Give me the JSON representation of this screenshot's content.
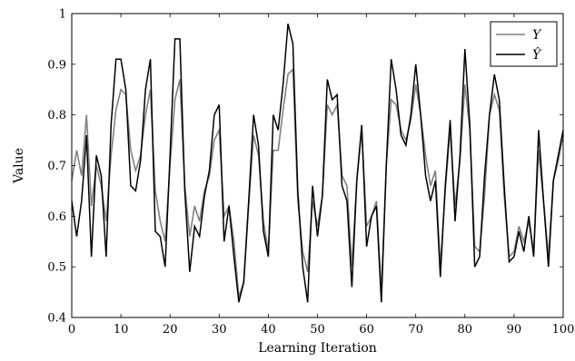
{
  "chart_data": {
    "type": "line",
    "title": "",
    "xlabel": "Learning Iteration",
    "ylabel": "Value",
    "xlim": [
      0,
      100
    ],
    "ylim": [
      0.4,
      1.0
    ],
    "xticks": [
      "0",
      "10",
      "20",
      "30",
      "40",
      "50",
      "60",
      "70",
      "80",
      "90",
      "100"
    ],
    "yticks": [
      "0.4",
      "0.5",
      "0.6",
      "0.7",
      "0.8",
      "0.9",
      "1"
    ],
    "grid": false,
    "legend_position": "top-right",
    "series": [
      {
        "name": "Y",
        "color": "#808080",
        "x": [
          0,
          1,
          2,
          3,
          4,
          5,
          6,
          7,
          8,
          9,
          10,
          11,
          12,
          13,
          14,
          15,
          16,
          17,
          18,
          19,
          20,
          21,
          22,
          23,
          24,
          25,
          26,
          27,
          28,
          29,
          30,
          31,
          32,
          33,
          34,
          35,
          36,
          37,
          38,
          39,
          40,
          41,
          42,
          43,
          44,
          45,
          46,
          47,
          48,
          49,
          50,
          51,
          52,
          53,
          54,
          55,
          56,
          57,
          58,
          59,
          60,
          61,
          62,
          63,
          64,
          65,
          66,
          67,
          68,
          69,
          70,
          71,
          72,
          73,
          74,
          75,
          76,
          77,
          78,
          79,
          80,
          81,
          82,
          83,
          84,
          85,
          86,
          87,
          88,
          89,
          90,
          91,
          92,
          93,
          94,
          95,
          96,
          97,
          98,
          99,
          100
        ],
        "values": [
          0.67,
          0.73,
          0.68,
          0.8,
          0.62,
          0.7,
          0.66,
          0.59,
          0.72,
          0.81,
          0.85,
          0.84,
          0.73,
          0.69,
          0.72,
          0.8,
          0.85,
          0.65,
          0.59,
          0.55,
          0.7,
          0.83,
          0.87,
          0.66,
          0.56,
          0.62,
          0.59,
          0.65,
          0.68,
          0.75,
          0.77,
          0.6,
          0.62,
          0.55,
          0.44,
          0.47,
          0.62,
          0.76,
          0.72,
          0.59,
          0.53,
          0.73,
          0.73,
          0.81,
          0.88,
          0.89,
          0.63,
          0.53,
          0.49,
          0.63,
          0.58,
          0.64,
          0.82,
          0.8,
          0.82,
          0.68,
          0.66,
          0.5,
          0.67,
          0.77,
          0.58,
          0.6,
          0.63,
          0.45,
          0.7,
          0.83,
          0.82,
          0.77,
          0.75,
          0.79,
          0.86,
          0.8,
          0.72,
          0.66,
          0.69,
          0.5,
          0.65,
          0.77,
          0.62,
          0.71,
          0.86,
          0.77,
          0.54,
          0.53,
          0.64,
          0.8,
          0.84,
          0.81,
          0.64,
          0.52,
          0.53,
          0.58,
          0.55,
          0.59,
          0.53,
          0.73,
          0.63,
          0.52,
          0.67,
          0.71,
          0.76
        ]
      },
      {
        "name": "Ŷ",
        "color": "#000000",
        "x": [
          0,
          1,
          2,
          3,
          4,
          5,
          6,
          7,
          8,
          9,
          10,
          11,
          12,
          13,
          14,
          15,
          16,
          17,
          18,
          19,
          20,
          21,
          22,
          23,
          24,
          25,
          26,
          27,
          28,
          29,
          30,
          31,
          32,
          33,
          34,
          35,
          36,
          37,
          38,
          39,
          40,
          41,
          42,
          43,
          44,
          45,
          46,
          47,
          48,
          49,
          50,
          51,
          52,
          53,
          54,
          55,
          56,
          57,
          58,
          59,
          60,
          61,
          62,
          63,
          64,
          65,
          66,
          67,
          68,
          69,
          70,
          71,
          72,
          73,
          74,
          75,
          76,
          77,
          78,
          79,
          80,
          81,
          82,
          83,
          84,
          85,
          86,
          87,
          88,
          89,
          90,
          91,
          92,
          93,
          94,
          95,
          96,
          97,
          98,
          99,
          100
        ],
        "values": [
          0.63,
          0.56,
          0.63,
          0.76,
          0.52,
          0.72,
          0.68,
          0.52,
          0.78,
          0.91,
          0.91,
          0.85,
          0.66,
          0.65,
          0.71,
          0.85,
          0.91,
          0.57,
          0.56,
          0.5,
          0.72,
          0.95,
          0.95,
          0.65,
          0.49,
          0.58,
          0.56,
          0.64,
          0.69,
          0.8,
          0.82,
          0.55,
          0.62,
          0.52,
          0.43,
          0.47,
          0.63,
          0.8,
          0.74,
          0.57,
          0.52,
          0.8,
          0.77,
          0.86,
          0.98,
          0.94,
          0.65,
          0.5,
          0.43,
          0.66,
          0.56,
          0.64,
          0.87,
          0.83,
          0.84,
          0.66,
          0.63,
          0.46,
          0.67,
          0.78,
          0.54,
          0.6,
          0.62,
          0.43,
          0.7,
          0.91,
          0.85,
          0.76,
          0.74,
          0.8,
          0.9,
          0.8,
          0.68,
          0.63,
          0.67,
          0.48,
          0.66,
          0.79,
          0.59,
          0.72,
          0.93,
          0.78,
          0.5,
          0.52,
          0.68,
          0.8,
          0.88,
          0.83,
          0.66,
          0.51,
          0.52,
          0.57,
          0.53,
          0.6,
          0.52,
          0.77,
          0.63,
          0.5,
          0.67,
          0.72,
          0.77
        ]
      }
    ]
  }
}
